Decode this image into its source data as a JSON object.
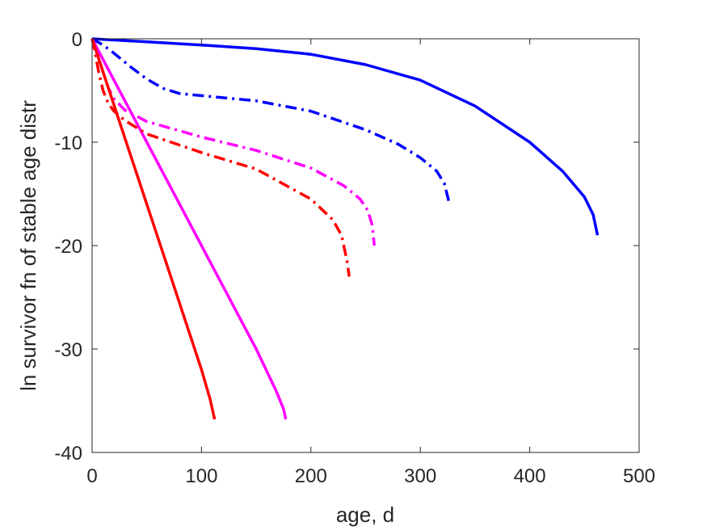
{
  "chart_data": {
    "type": "line",
    "title": "",
    "xlabel": "age, d",
    "ylabel": "ln survivor fn of stable age distr",
    "xlim": [
      0,
      500
    ],
    "ylim": [
      -40,
      0
    ],
    "xticks": [
      0,
      100,
      200,
      300,
      400,
      500
    ],
    "yticks": [
      0,
      -10,
      -20,
      -30,
      -40
    ],
    "xtick_labels": [
      "0",
      "100",
      "200",
      "300",
      "400",
      "500"
    ],
    "ytick_labels": [
      "0",
      "-10",
      "-20",
      "-30",
      "-40"
    ],
    "grid": false,
    "legend": "none",
    "series": [
      {
        "color": "#0000ff",
        "style": "solid",
        "x": [
          0,
          50,
          100,
          150,
          200,
          250,
          300,
          350,
          400,
          430,
          450,
          458,
          462
        ],
        "y": [
          0,
          -0.3,
          -0.6,
          -0.95,
          -1.5,
          -2.5,
          -4.0,
          -6.5,
          -10.0,
          -12.8,
          -15.3,
          -17.0,
          -19.0
        ]
      },
      {
        "color": "#0000ff",
        "style": "dashdot",
        "x": [
          0,
          10,
          20,
          35,
          50,
          65,
          80,
          100,
          150,
          200,
          250,
          280,
          300,
          315,
          322,
          326
        ],
        "y": [
          0,
          -0.6,
          -1.4,
          -2.7,
          -3.9,
          -4.8,
          -5.3,
          -5.5,
          -6.0,
          -7.0,
          -8.8,
          -10.2,
          -11.5,
          -12.8,
          -14.0,
          -15.7
        ]
      },
      {
        "color": "#ff00ff",
        "style": "solid",
        "x": [
          0,
          25,
          50,
          100,
          150,
          168,
          175,
          177
        ],
        "y": [
          0,
          -5.0,
          -10.0,
          -20.0,
          -30.0,
          -34.0,
          -35.8,
          -36.8
        ]
      },
      {
        "color": "#ff00ff",
        "style": "dashdot",
        "x": [
          0,
          5,
          10,
          15,
          20,
          30,
          50,
          100,
          150,
          200,
          230,
          245,
          252,
          256,
          258
        ],
        "y": [
          0,
          -1.5,
          -3.2,
          -4.8,
          -5.8,
          -6.9,
          -8.0,
          -9.5,
          -10.8,
          -12.5,
          -14.2,
          -15.5,
          -16.6,
          -18.0,
          -20.0
        ]
      },
      {
        "color": "#ff0000",
        "style": "solid",
        "x": [
          0,
          25,
          50,
          75,
          100,
          108,
          112
        ],
        "y": [
          0,
          -8.0,
          -16.0,
          -24.0,
          -32.0,
          -34.9,
          -36.8
        ]
      },
      {
        "color": "#ff0000",
        "style": "dashdot",
        "x": [
          0,
          3,
          6,
          10,
          15,
          20,
          30,
          50,
          100,
          150,
          200,
          220,
          228,
          231,
          233,
          235
        ],
        "y": [
          0,
          -1.5,
          -3.2,
          -5.0,
          -6.3,
          -7.0,
          -7.9,
          -9.2,
          -11.0,
          -12.6,
          -15.5,
          -17.5,
          -19.0,
          -20.5,
          -21.5,
          -23.0
        ]
      }
    ]
  }
}
